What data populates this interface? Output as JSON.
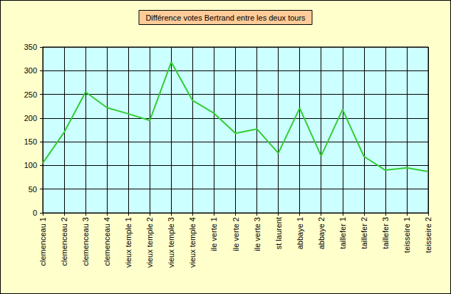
{
  "chart_data": {
    "type": "line",
    "title": "Différence votes Bertrand entre les deux tours",
    "categories": [
      "clemenceau 1",
      "clemenceau 2",
      "clemenceau 3",
      "clemenceau 4",
      "vieux temple 1",
      "vieux temple 2",
      "vieux temple 3",
      "vieux temple 4",
      "ile verte 1",
      "ile verte 2",
      "ile verte 3",
      "st laurent",
      "abbaye 1",
      "abbaye 2",
      "taillefer 1",
      "taillefer 2",
      "taillefer 3",
      "teisseire 1",
      "teisseire 2"
    ],
    "values": [
      105,
      170,
      255,
      222,
      209,
      195,
      318,
      237,
      210,
      168,
      177,
      126,
      221,
      120,
      218,
      119,
      90,
      95,
      87
    ],
    "color": "#33cc33",
    "ylim": [
      0,
      350
    ],
    "yticks": [
      0,
      50,
      100,
      150,
      200,
      250,
      300,
      350
    ],
    "grid": true
  }
}
